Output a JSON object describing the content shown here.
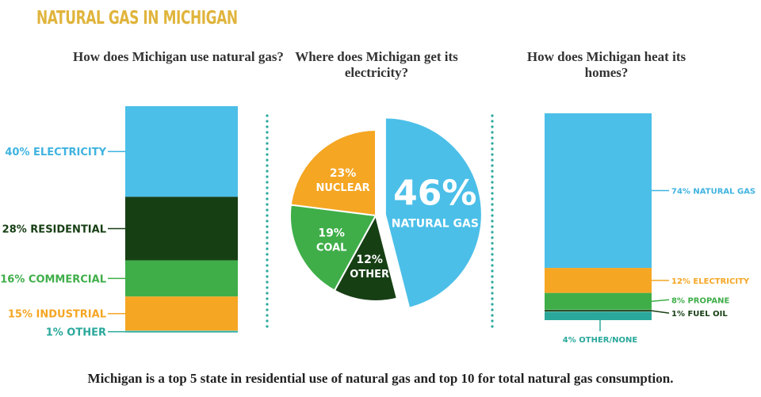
{
  "title": "NATURAL GAS IN MICHIGAN",
  "footer": "Michigan is a top 5 state in residential use of natural gas and top 10 for total natural gas consumption.",
  "colors": {
    "blue": "#4bbfe8",
    "dark_green": "#173f14",
    "green": "#3fae49",
    "orange": "#f5a623",
    "teal": "#2aa89b",
    "title": "#e0b43c"
  },
  "chart_data": [
    {
      "type": "bar",
      "stacked": true,
      "title": "How does Michigan use natural gas?",
      "segments": [
        {
          "label": "40% ELECTRICITY",
          "value": 40,
          "color": "#4bbfe8"
        },
        {
          "label": "28% RESIDENTIAL",
          "value": 28,
          "color": "#173f14"
        },
        {
          "label": "16% COMMERCIAL",
          "value": 16,
          "color": "#3fae49"
        },
        {
          "label": "15% INDUSTRIAL",
          "value": 15,
          "color": "#f5a623"
        },
        {
          "label": "1% OTHER",
          "value": 1,
          "color": "#2aa89b"
        }
      ]
    },
    {
      "type": "pie",
      "title": "Where does Michigan get its electricity?",
      "slices": [
        {
          "pct": "46%",
          "name": "NATURAL GAS",
          "value": 46,
          "color": "#4bbfe8",
          "exploded": true
        },
        {
          "pct": "12%",
          "name": "OTHER",
          "value": 12,
          "color": "#173f14"
        },
        {
          "pct": "19%",
          "name": "COAL",
          "value": 19,
          "color": "#3fae49"
        },
        {
          "pct": "23%",
          "name": "NUCLEAR",
          "value": 23,
          "color": "#f5a623"
        }
      ]
    },
    {
      "type": "bar",
      "stacked": true,
      "title": "How does Michigan heat its homes?",
      "segments": [
        {
          "label": "74% NATURAL GAS",
          "value": 74,
          "color": "#4bbfe8"
        },
        {
          "label": "12% ELECTRICITY",
          "value": 12,
          "color": "#f5a623"
        },
        {
          "label": "8% PROPANE",
          "value": 8,
          "color": "#3fae49"
        },
        {
          "label": "1% FUEL OIL",
          "value": 1,
          "color": "#173f14"
        },
        {
          "label": "4% OTHER/NONE",
          "value": 4,
          "color": "#2aa89b"
        }
      ]
    }
  ]
}
